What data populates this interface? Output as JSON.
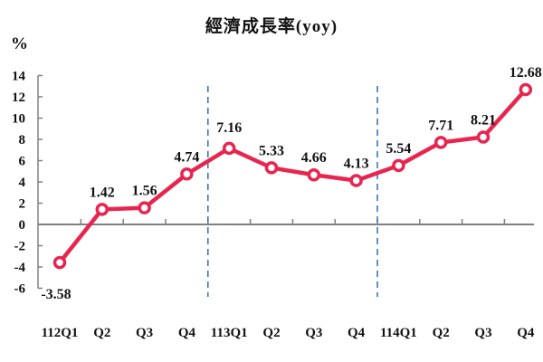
{
  "chart_data": {
    "type": "line",
    "title": "經濟成長率(yoy)",
    "ylabel": "%",
    "xlabel": "",
    "ylim": [
      -6,
      14
    ],
    "yticks": [
      14,
      12,
      10,
      8,
      6,
      4,
      2,
      0,
      -2,
      -4,
      -6
    ],
    "grid": false,
    "legend": "none",
    "categories": [
      "112Q1",
      "Q2",
      "Q3",
      "Q4",
      "113Q1",
      "Q2",
      "Q3",
      "Q4",
      "114Q1",
      "Q2",
      "Q3",
      "Q4"
    ],
    "series": [
      {
        "name": "經濟成長率(yoy)",
        "color": "#e8254f",
        "values": [
          -3.58,
          1.42,
          1.56,
          4.74,
          7.16,
          5.33,
          4.66,
          4.13,
          5.54,
          7.71,
          8.21,
          12.68
        ]
      }
    ],
    "value_labels": [
      "-3.58",
      "1.42",
      "1.56",
      "4.74",
      "7.16",
      "5.33",
      "4.66",
      "4.13",
      "5.54",
      "7.71",
      "8.21",
      "12.68"
    ],
    "annotations": [
      {
        "type": "vertical-dashed-line",
        "between": [
          "Q4",
          "113Q1"
        ],
        "color": "#2e6db4"
      },
      {
        "type": "vertical-dashed-line",
        "between": [
          "Q4",
          "114Q1"
        ],
        "color": "#2e6db4"
      }
    ]
  },
  "colors": {
    "line": "#e8254f",
    "axis": "#808080",
    "divider": "#2e6db4",
    "text": "#111111"
  }
}
